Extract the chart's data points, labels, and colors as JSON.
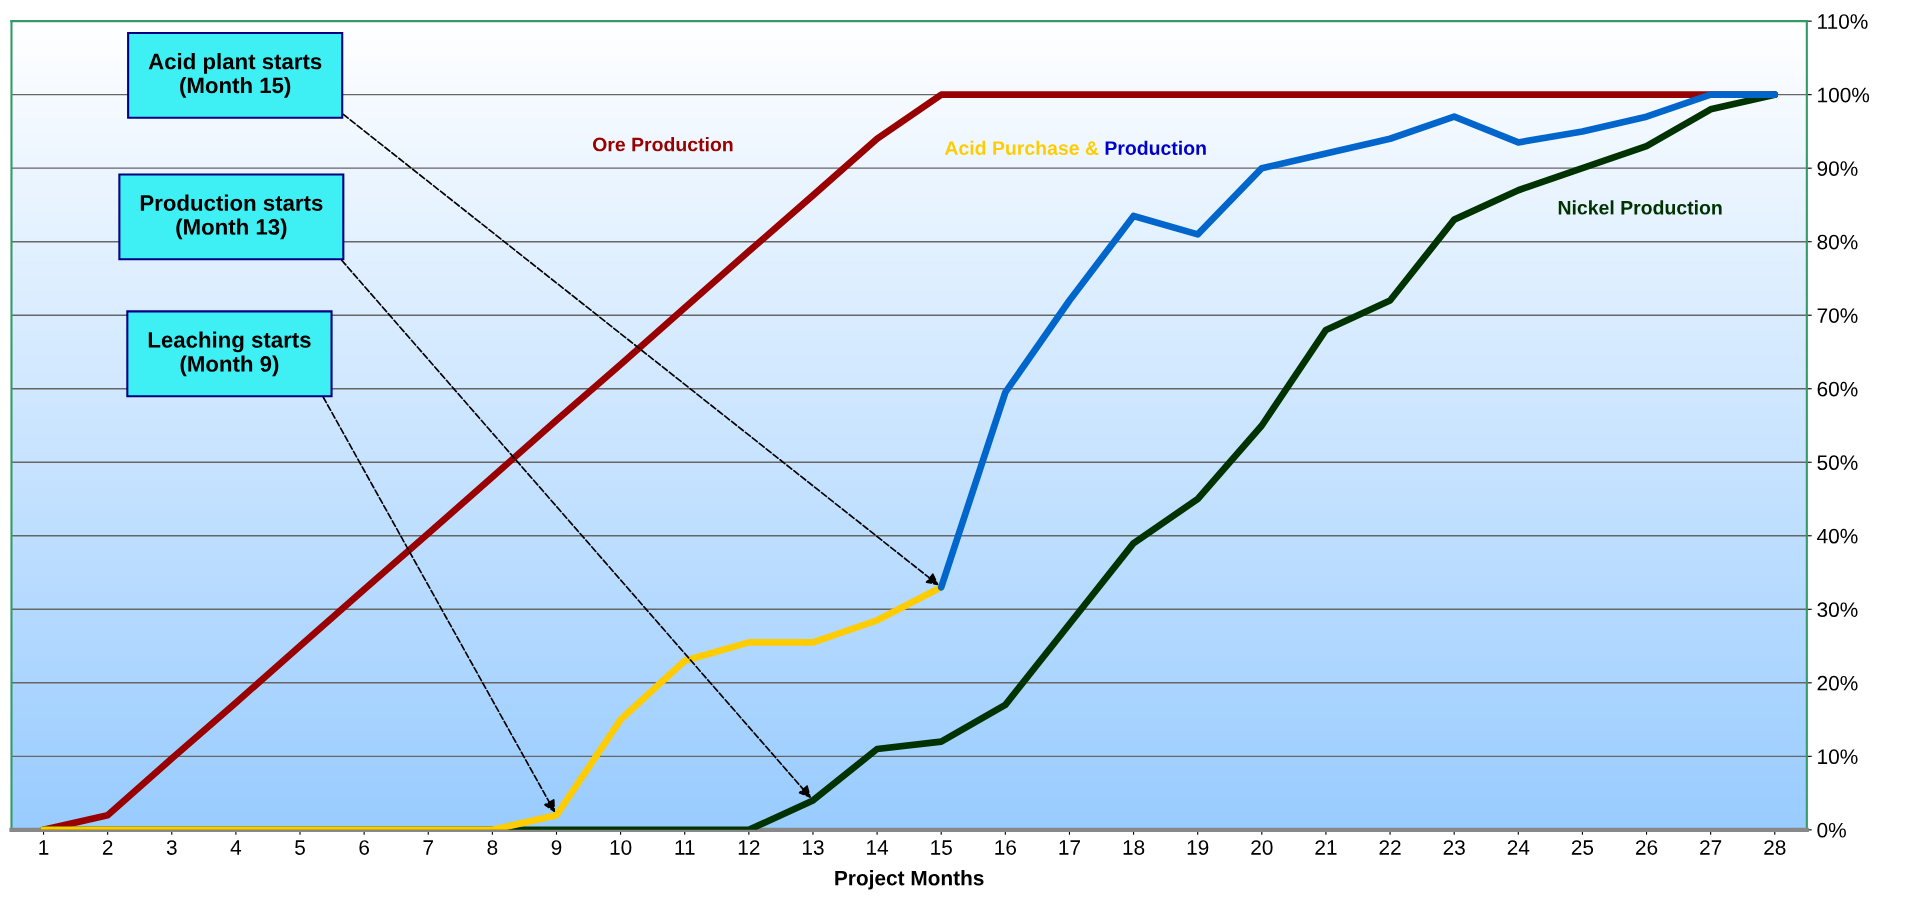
{
  "chart_data": {
    "type": "line",
    "xlabel": "Project Months",
    "categories": [
      "1",
      "2",
      "3",
      "4",
      "5",
      "6",
      "7",
      "8",
      "9",
      "10",
      "11",
      "12",
      "13",
      "14",
      "15",
      "16",
      "17",
      "18",
      "19",
      "20",
      "21",
      "22",
      "23",
      "24",
      "25",
      "26",
      "27",
      "28"
    ],
    "series": [
      {
        "name": "Ore Production",
        "color": "#990000",
        "values": [
          0,
          2,
          9.7,
          17.3,
          25,
          32.7,
          40.3,
          48,
          55.7,
          63.3,
          71,
          78.7,
          86.3,
          94,
          100,
          100,
          100,
          100,
          100,
          100,
          100,
          100,
          100,
          100,
          100,
          100,
          100,
          100
        ]
      },
      {
        "name": "Nickel Production",
        "color": "#003300",
        "values": [
          0,
          0,
          0,
          0,
          0,
          0,
          0,
          0,
          0,
          0,
          0,
          0,
          4,
          11,
          12,
          17,
          28,
          39,
          45,
          55,
          68,
          72,
          83,
          87,
          90,
          93,
          98,
          100
        ]
      },
      {
        "name": "Acid Purchase &",
        "color": "#ffcc00",
        "values": [
          0,
          0,
          0,
          0,
          0,
          0,
          0,
          0,
          2,
          15,
          23,
          25.5,
          25.5,
          28.5,
          33,
          null,
          null,
          null,
          null,
          null,
          null,
          null,
          null,
          null,
          null,
          null,
          null,
          null
        ]
      },
      {
        "name": "Production",
        "color": "#0066cc",
        "values": [
          null,
          null,
          null,
          null,
          null,
          null,
          null,
          null,
          null,
          null,
          null,
          null,
          null,
          null,
          33,
          59.5,
          72,
          83.5,
          81,
          90,
          92,
          94,
          97,
          93.5,
          95,
          97,
          100,
          100
        ]
      }
    ],
    "ylim": [
      0,
      110
    ],
    "yticks": [
      {
        "value": 0,
        "label": "0%"
      },
      {
        "value": 10,
        "label": "10%"
      },
      {
        "value": 20,
        "label": "20%"
      },
      {
        "value": 30,
        "label": "30%"
      },
      {
        "value": 40,
        "label": "40%"
      },
      {
        "value": 50,
        "label": "50%"
      },
      {
        "value": 60,
        "label": "60%"
      },
      {
        "value": 70,
        "label": "70%"
      },
      {
        "value": 80,
        "label": "80%"
      },
      {
        "value": 90,
        "label": "90%"
      },
      {
        "value": 100,
        "label": "100%"
      },
      {
        "value": 110,
        "label": "110%"
      }
    ],
    "grid": "y",
    "line_style": "solid",
    "marker": "none",
    "annotations": [
      {
        "text": "Acid plant starts\n(Month 15)",
        "x": "15",
        "y": 33
      },
      {
        "text": "Production starts\n(Month 13)",
        "x": "13",
        "y": 4
      },
      {
        "text": "Leaching starts\n(Month 9)",
        "x": "9",
        "y": 2
      }
    ]
  }
}
